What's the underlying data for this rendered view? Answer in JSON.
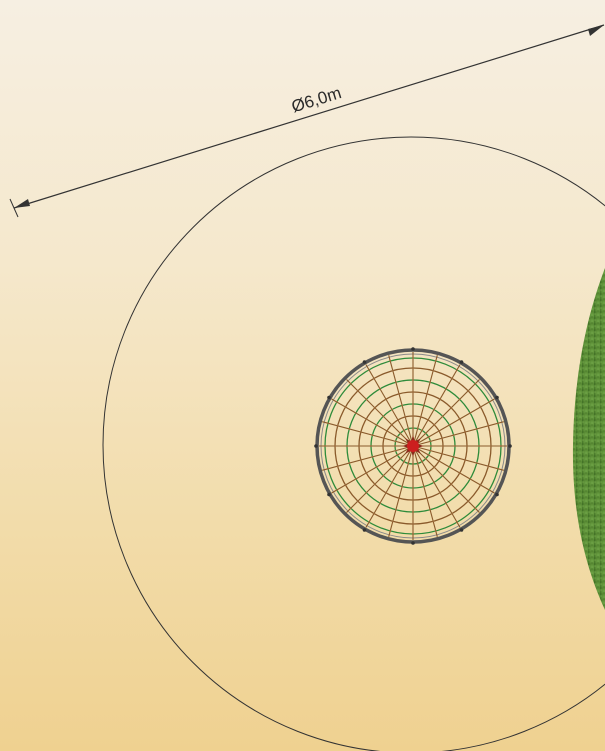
{
  "diagram": {
    "dimension_label": "Ø6,0m",
    "colors": {
      "background_top": "#f6efe2",
      "background_bottom": "#efd190",
      "safety_circle": "#333333",
      "net_frame": "#555555",
      "rope_green": "#2e8b3a",
      "rope_brown": "#8a5a2b",
      "center_hub": "#cc1f1f",
      "grass": "#5f8f3a"
    }
  }
}
